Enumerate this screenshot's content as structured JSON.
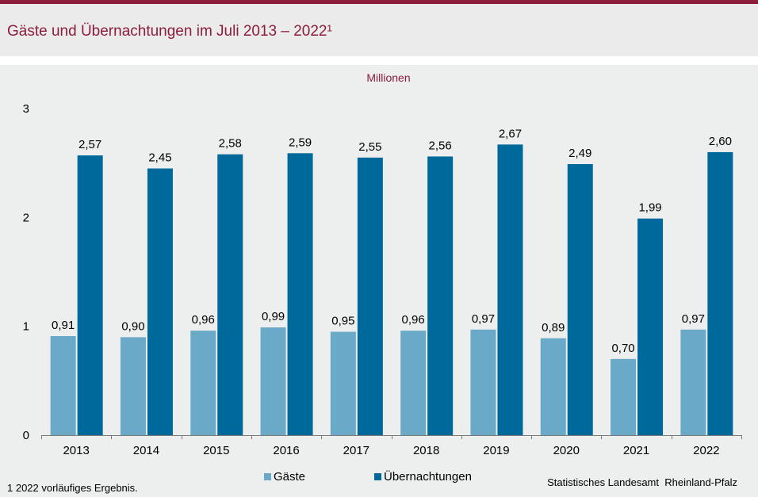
{
  "title": "Gäste und Übernachtungen im Juli 2013 – 2022¹",
  "footnote": "1 2022 vorläufiges Ergebnis.",
  "source": "Statistisches Landesamt  Rheinland-Pfalz",
  "colors": {
    "accent": "#8c1d3c",
    "gaeste": "#6aaac8",
    "uebernachtungen": "#00699b"
  },
  "chart_data": {
    "type": "bar",
    "title": "Gäste und Übernachtungen im Juli 2013 – 2022¹",
    "ylabel": "Millionen",
    "xlabel": "",
    "ylim": [
      0,
      3
    ],
    "yticks": [
      "0",
      "1",
      "2",
      "3"
    ],
    "categories": [
      "2013",
      "2014",
      "2015",
      "2016",
      "2017",
      "2018",
      "2019",
      "2020",
      "2021",
      "2022"
    ],
    "series": [
      {
        "name": "Gäste",
        "values": [
          0.91,
          0.9,
          0.96,
          0.99,
          0.95,
          0.96,
          0.97,
          0.89,
          0.7,
          0.97
        ],
        "labels": [
          "0,91",
          "0,90",
          "0,96",
          "0,99",
          "0,95",
          "0,96",
          "0,97",
          "0,89",
          "0,70",
          "0,97"
        ]
      },
      {
        "name": "Übernachtungen",
        "values": [
          2.57,
          2.45,
          2.58,
          2.59,
          2.55,
          2.56,
          2.67,
          2.49,
          1.99,
          2.6
        ],
        "labels": [
          "2,57",
          "2,45",
          "2,58",
          "2,59",
          "2,55",
          "2,56",
          "2,67",
          "2,49",
          "1,99",
          "2,60"
        ]
      }
    ],
    "grid": false,
    "legend": "bottom-center"
  }
}
